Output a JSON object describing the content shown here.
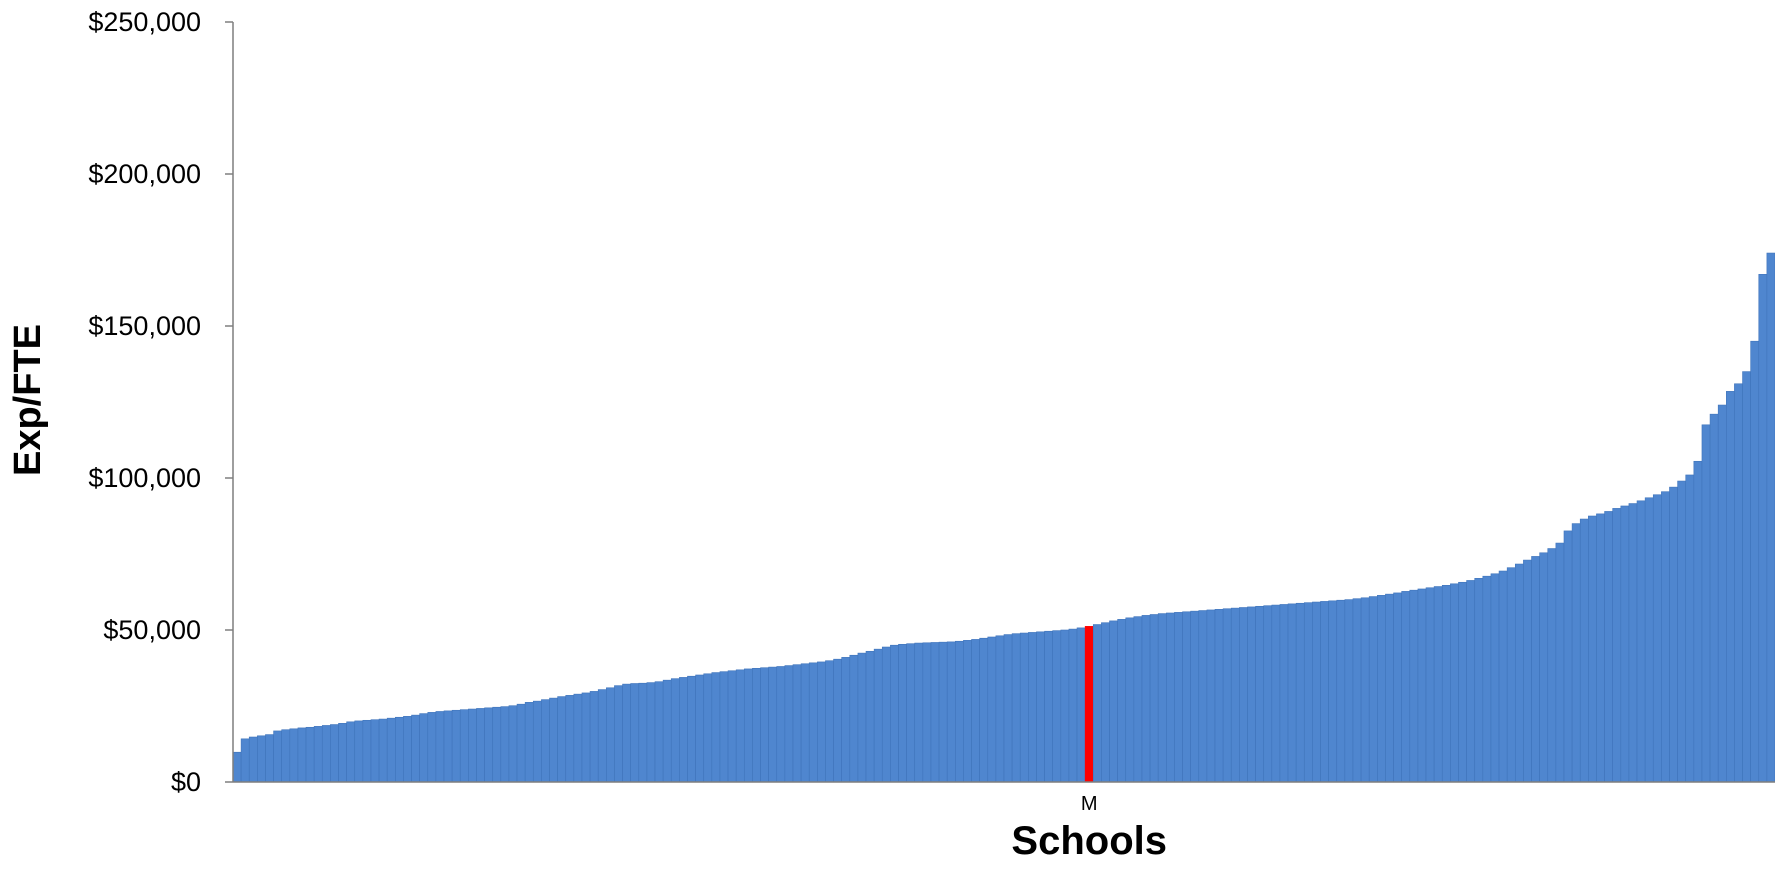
{
  "chart_data": {
    "type": "bar",
    "title": "",
    "xlabel": "Schools",
    "ylabel": "Exp/FTE",
    "ylim": [
      0,
      250000
    ],
    "y_ticks": [
      {
        "value": 0,
        "label": "$0"
      },
      {
        "value": 50000,
        "label": "$50,000"
      },
      {
        "value": 100000,
        "label": "$100,000"
      },
      {
        "value": 150000,
        "label": "$150,000"
      },
      {
        "value": 200000,
        "label": "$200,000"
      },
      {
        "value": 250000,
        "label": "$250,000"
      }
    ],
    "x_tick_labels": [
      {
        "index": 105,
        "label": "M"
      }
    ],
    "highlight_index": 105,
    "grid": false,
    "colors": {
      "bar": "#4F86CF",
      "bar_edge": "#3F74BB",
      "highlight": "#FF0000",
      "axis": "#7F7F7F",
      "text": "#000000"
    },
    "values": [
      9800,
      14200,
      14800,
      15200,
      15600,
      16800,
      17200,
      17500,
      17800,
      18000,
      18300,
      18600,
      18900,
      19300,
      19800,
      20100,
      20300,
      20500,
      20700,
      21000,
      21300,
      21600,
      22000,
      22500,
      22900,
      23200,
      23400,
      23600,
      23800,
      24000,
      24200,
      24400,
      24600,
      24800,
      25100,
      25600,
      26200,
      26600,
      27100,
      27600,
      28100,
      28500,
      28900,
      29300,
      29800,
      30400,
      31000,
      31700,
      32200,
      32400,
      32500,
      32700,
      33000,
      33500,
      34000,
      34400,
      34800,
      35200,
      35600,
      36000,
      36300,
      36600,
      36900,
      37200,
      37400,
      37600,
      37800,
      38000,
      38300,
      38600,
      38900,
      39200,
      39500,
      39900,
      40400,
      41000,
      41700,
      42400,
      43000,
      43700,
      44400,
      45000,
      45300,
      45500,
      45700,
      45800,
      45900,
      46000,
      46100,
      46300,
      46600,
      46900,
      47300,
      47700,
      48100,
      48500,
      48800,
      49000,
      49200,
      49400,
      49600,
      49800,
      50000,
      50300,
      50700,
      51200,
      51800,
      52400,
      53000,
      53500,
      54000,
      54400,
      54800,
      55100,
      55400,
      55600,
      55800,
      56000,
      56200,
      56400,
      56600,
      56800,
      57000,
      57200,
      57400,
      57600,
      57800,
      58000,
      58200,
      58400,
      58600,
      58800,
      59000,
      59200,
      59400,
      59600,
      59800,
      60000,
      60300,
      60600,
      61000,
      61400,
      61800,
      62200,
      62700,
      63100,
      63500,
      63900,
      64300,
      64700,
      65200,
      65700,
      66300,
      67000,
      67700,
      68500,
      69400,
      70500,
      71700,
      73000,
      74200,
      75400,
      76800,
      78600,
      82600,
      85000,
      86500,
      87500,
      88200,
      89000,
      90000,
      90800,
      91600,
      92500,
      93500,
      94500,
      95500,
      97000,
      99000,
      101000,
      105500,
      117500,
      121000,
      124000,
      128500,
      131000,
      135000,
      145000,
      167000,
      174000
    ]
  }
}
